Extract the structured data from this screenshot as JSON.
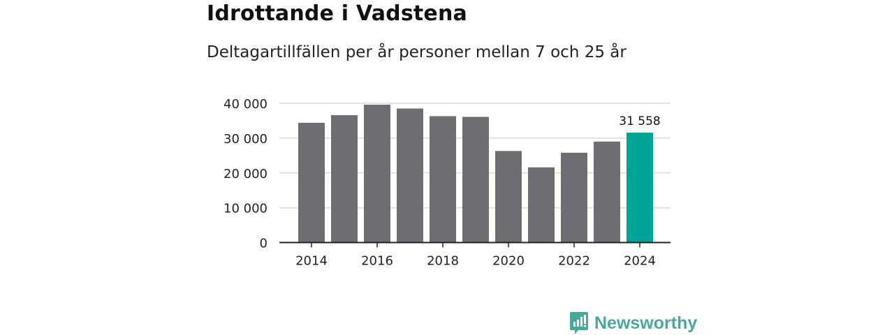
{
  "title": "Idrottande i Vadstena",
  "subtitle": "Deltagartillfällen per år personer mellan 7 och 25 år",
  "brand": {
    "name": "Newsworthy",
    "icon": "newsworthy-logo-icon",
    "color": "#48a89a"
  },
  "colors": {
    "bar": "#6d6d72",
    "highlight": "#00a398",
    "grid": "#d9d9d9",
    "axis": "#222222",
    "text": "#222222"
  },
  "chart_data": {
    "type": "bar",
    "categories": [
      "2014",
      "2015",
      "2016",
      "2017",
      "2018",
      "2019",
      "2020",
      "2021",
      "2022",
      "2023",
      "2024"
    ],
    "values": [
      34400,
      36600,
      39600,
      38500,
      36300,
      36100,
      26300,
      21600,
      25800,
      29000,
      31558
    ],
    "highlight_index": 10,
    "data_labels": [
      {
        "index": 10,
        "text": "31 558"
      }
    ],
    "xtick_labels": [
      "2014",
      "2016",
      "2018",
      "2020",
      "2022",
      "2024"
    ],
    "ytick_values": [
      0,
      10000,
      20000,
      30000,
      40000
    ],
    "ytick_labels": [
      "0",
      "10 000",
      "20 000",
      "30 000",
      "40 000"
    ],
    "ylim": [
      0,
      40000
    ],
    "xlabel": "",
    "ylabel": "",
    "grid": true,
    "legend": "none"
  }
}
